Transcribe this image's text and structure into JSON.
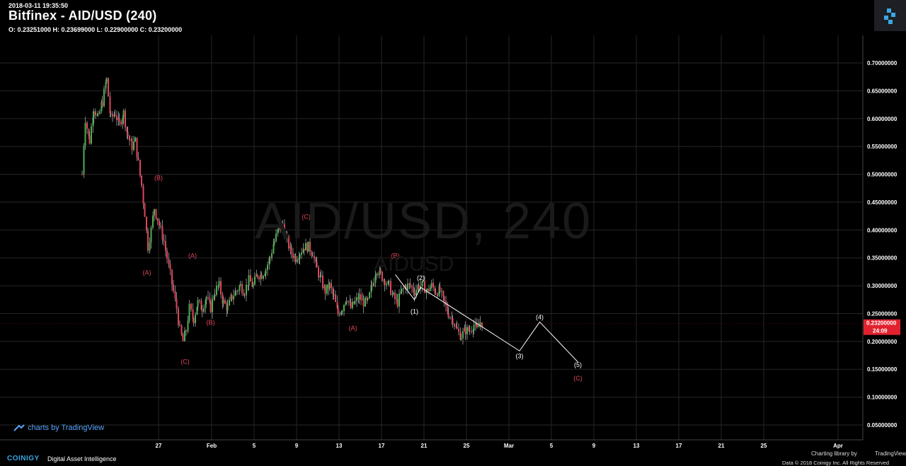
{
  "header": {
    "timestamp": "2018-03-11 19:35:50",
    "title": "Bitfinex - AID/USD (240)",
    "ohlc": "O: 0.23251000 H: 0.23699000 L: 0.22900000 C: 0.23200000"
  },
  "watermark": {
    "symbol": "AID/USD, 240",
    "sub": "AIDUSD"
  },
  "footer": {
    "tv_credit": "charts by TradingView",
    "brand": "COINIGY",
    "brand_tagline": "Digital Asset Intelligence",
    "library_credit": "Charting library by",
    "library_name": "TradingView",
    "copyright": "Data © 2018   Coinigy Inc. All Rights Reserved"
  },
  "colors": {
    "background": "#000000",
    "grid": "#262626",
    "up": "#4caf50",
    "down": "#e0455a",
    "label_red": "#e0455a",
    "label_white": "#ffffff",
    "price_badge": "#e1222e"
  },
  "chart_data": {
    "type": "candlestick",
    "x_axis": {
      "unit": "days since 2018-01-01",
      "ticks": [
        {
          "label": "27",
          "x": 26
        },
        {
          "label": "Feb",
          "x": 31
        },
        {
          "label": "5",
          "x": 35
        },
        {
          "label": "9",
          "x": 39
        },
        {
          "label": "13",
          "x": 43
        },
        {
          "label": "17",
          "x": 47
        },
        {
          "label": "21",
          "x": 51
        },
        {
          "label": "25",
          "x": 55
        },
        {
          "label": "Mar",
          "x": 59
        },
        {
          "label": "5",
          "x": 63
        },
        {
          "label": "9",
          "x": 67
        },
        {
          "label": "13",
          "x": 71
        },
        {
          "label": "17",
          "x": 75
        },
        {
          "label": "21",
          "x": 79
        },
        {
          "label": "25",
          "x": 83
        },
        {
          "label": "Apr",
          "x": 90
        }
      ]
    },
    "y_axis": {
      "range": [
        0.03,
        0.74
      ],
      "ticks": [
        "0.70000000",
        "0.65000000",
        "0.60000000",
        "0.55000000",
        "0.50000000",
        "0.45000000",
        "0.40000000",
        "0.35000000",
        "0.30000000",
        "0.25000000",
        "0.20000000",
        "0.15000000",
        "0.10000000",
        "0.05000000"
      ]
    },
    "last_price": {
      "value": 0.232,
      "label": "0.23200000",
      "countdown": "24:09"
    },
    "price_path": [
      [
        25.8,
        0.5
      ],
      [
        26.1,
        0.6
      ],
      [
        26.5,
        0.56
      ],
      [
        26.9,
        0.62
      ],
      [
        27.3,
        0.6
      ],
      [
        27.7,
        0.63
      ],
      [
        28.1,
        0.67
      ],
      [
        28.5,
        0.6
      ],
      [
        28.9,
        0.61
      ],
      [
        29.3,
        0.59
      ],
      [
        29.7,
        0.61
      ],
      [
        30.1,
        0.57
      ],
      [
        30.5,
        0.55
      ],
      [
        30.8,
        0.56
      ],
      [
        31.1,
        0.52
      ],
      [
        31.4,
        0.48
      ],
      [
        31.7,
        0.43
      ],
      [
        32.0,
        0.37
      ],
      [
        32.3,
        0.4
      ],
      [
        32.6,
        0.44
      ],
      [
        32.9,
        0.42
      ],
      [
        33.2,
        0.4
      ],
      [
        33.5,
        0.38
      ],
      [
        33.8,
        0.35
      ],
      [
        34.1,
        0.32
      ],
      [
        34.4,
        0.29
      ],
      [
        34.7,
        0.26
      ],
      [
        35.0,
        0.22
      ],
      [
        35.3,
        0.2
      ],
      [
        35.6,
        0.22
      ],
      [
        35.9,
        0.26
      ],
      [
        36.3,
        0.24
      ],
      [
        36.7,
        0.27
      ],
      [
        37.1,
        0.26
      ],
      [
        37.5,
        0.28
      ],
      [
        37.9,
        0.26
      ],
      [
        38.3,
        0.29
      ],
      [
        38.7,
        0.3
      ],
      [
        39.1,
        0.27
      ],
      [
        39.5,
        0.26
      ],
      [
        39.9,
        0.28
      ],
      [
        40.3,
        0.29
      ],
      [
        40.7,
        0.3
      ],
      [
        41.1,
        0.29
      ],
      [
        41.5,
        0.31
      ],
      [
        41.9,
        0.3
      ],
      [
        42.3,
        0.32
      ],
      [
        42.7,
        0.32
      ],
      [
        43.1,
        0.33
      ],
      [
        43.5,
        0.35
      ],
      [
        43.9,
        0.38
      ],
      [
        44.3,
        0.4
      ],
      [
        44.7,
        0.41
      ],
      [
        45.1,
        0.38
      ],
      [
        45.5,
        0.36
      ],
      [
        45.9,
        0.35
      ],
      [
        46.3,
        0.36
      ],
      [
        46.7,
        0.37
      ],
      [
        47.1,
        0.37
      ],
      [
        47.5,
        0.36
      ],
      [
        47.9,
        0.33
      ],
      [
        48.3,
        0.31
      ],
      [
        48.7,
        0.29
      ],
      [
        49.1,
        0.3
      ],
      [
        49.5,
        0.28
      ],
      [
        49.9,
        0.25
      ],
      [
        50.3,
        0.26
      ],
      [
        50.7,
        0.28
      ],
      [
        51.1,
        0.26
      ],
      [
        51.5,
        0.27
      ],
      [
        51.9,
        0.28
      ],
      [
        52.3,
        0.27
      ],
      [
        52.7,
        0.27
      ],
      [
        53.1,
        0.3
      ],
      [
        53.5,
        0.33
      ],
      [
        53.9,
        0.32
      ],
      [
        54.3,
        0.31
      ],
      [
        54.7,
        0.3
      ],
      [
        55.1,
        0.28
      ],
      [
        55.5,
        0.27
      ],
      [
        55.9,
        0.29
      ],
      [
        56.3,
        0.3
      ],
      [
        56.7,
        0.3
      ],
      [
        57.1,
        0.29
      ],
      [
        57.5,
        0.3
      ],
      [
        57.9,
        0.3
      ],
      [
        58.3,
        0.29
      ],
      [
        58.7,
        0.3
      ],
      [
        59.1,
        0.29
      ],
      [
        59.5,
        0.29
      ],
      [
        59.9,
        0.27
      ],
      [
        60.3,
        0.25
      ],
      [
        60.7,
        0.24
      ],
      [
        61.1,
        0.22
      ],
      [
        61.5,
        0.21
      ],
      [
        61.9,
        0.22
      ],
      [
        62.3,
        0.22
      ],
      [
        62.7,
        0.23
      ],
      [
        63.0,
        0.22
      ],
      [
        63.3,
        0.235
      ],
      [
        63.6,
        0.232
      ]
    ],
    "x_offset": 7,
    "annotations": [
      {
        "text": "(A)",
        "x": 31.9,
        "y": 0.32,
        "color": "red"
      },
      {
        "text": "(B)",
        "x": 33.0,
        "y": 0.49,
        "color": "red"
      },
      {
        "text": "(C)",
        "x": 35.5,
        "y": 0.16,
        "color": "red"
      },
      {
        "text": "(A)",
        "x": 36.2,
        "y": 0.35,
        "color": "red"
      },
      {
        "text": "(B)",
        "x": 37.9,
        "y": 0.23,
        "color": "red"
      },
      {
        "text": "(C)",
        "x": 46.9,
        "y": 0.42,
        "color": "red"
      },
      {
        "text": "(A)",
        "x": 51.3,
        "y": 0.22,
        "color": "red"
      },
      {
        "text": "(B)",
        "x": 55.3,
        "y": 0.35,
        "color": "red"
      },
      {
        "text": "(C)",
        "x": 72.5,
        "y": 0.13,
        "color": "red"
      },
      {
        "text": "(1)",
        "x": 57.1,
        "y": 0.25,
        "color": "white"
      },
      {
        "text": "(2)",
        "x": 57.7,
        "y": 0.31,
        "color": "white"
      },
      {
        "text": "(3)",
        "x": 67.0,
        "y": 0.17,
        "color": "white"
      },
      {
        "text": "(4)",
        "x": 68.9,
        "y": 0.24,
        "color": "white"
      },
      {
        "text": "(5)",
        "x": 72.5,
        "y": 0.154,
        "color": "white"
      }
    ],
    "wave_line": [
      [
        55.3,
        0.32
      ],
      [
        57.1,
        0.275
      ],
      [
        57.7,
        0.297
      ],
      [
        67.0,
        0.183
      ],
      [
        68.9,
        0.235
      ],
      [
        72.5,
        0.163
      ]
    ]
  }
}
